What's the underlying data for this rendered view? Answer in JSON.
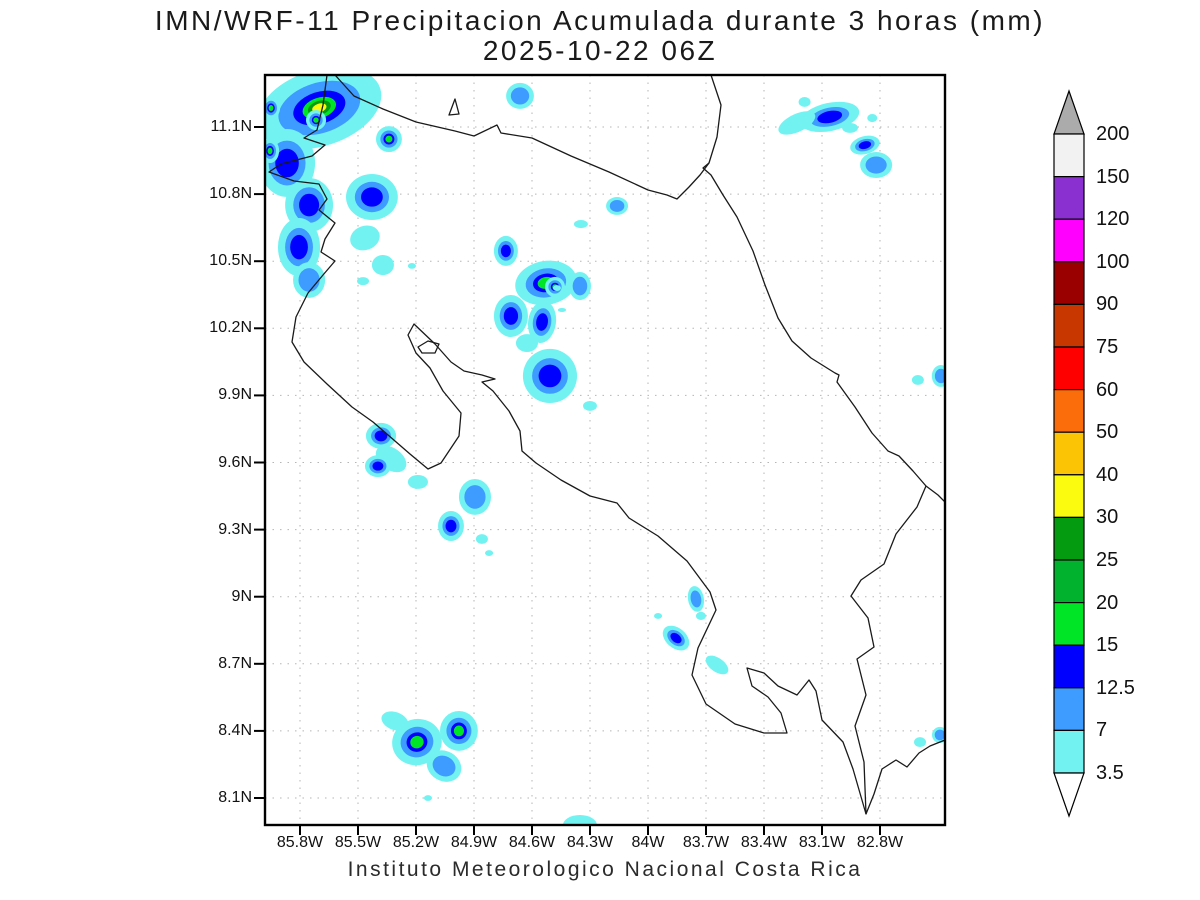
{
  "title": {
    "line1": "IMN/WRF-11 Precipitacion Acumulada durante 3 horas (mm)",
    "line2": "2025-10-22 06Z"
  },
  "footer": "Instituto Meteorologico Nacional Costa Rica",
  "axes": {
    "x_tick_labels": [
      "85.8W",
      "85.5W",
      "85.2W",
      "84.9W",
      "84.6W",
      "84.3W",
      "84W",
      "83.7W",
      "83.4W",
      "83.1W",
      "82.8W"
    ],
    "y_tick_labels": [
      "11.1N",
      "10.8N",
      "10.5N",
      "10.2N",
      "9.9N",
      "9.6N",
      "9.3N",
      "9N",
      "8.7N",
      "8.4N",
      "8.1N"
    ]
  },
  "colorbar": {
    "labels_top_to_bottom": [
      "200",
      "150",
      "120",
      "100",
      "90",
      "75",
      "60",
      "50",
      "40",
      "30",
      "25",
      "20",
      "15",
      "12.5",
      "7",
      "3.5"
    ],
    "segment_colors_top_to_bottom": [
      "#F2F2F2",
      "#8A2FD0",
      "#FF00FF",
      "#9B0000",
      "#C83700",
      "#FF0000",
      "#FB6C0A",
      "#FBC405",
      "#FBFB10",
      "#049B10",
      "#00B22D",
      "#00E626",
      "#0000FF",
      "#3E9BFF",
      "#73F2F2"
    ],
    "arrow_top_color": "#ABABAB",
    "arrow_bottom_color": "#FFFFFF"
  },
  "chart_data": {
    "type": "heatmap",
    "subtype": "precipitation-contour-map",
    "title": "IMN/WRF-11 Precipitacion Acumulada durante 3 horas (mm)",
    "valid_time": "2025-10-22 06Z",
    "units": "mm",
    "region": "Costa Rica",
    "source": "Instituto Meteorologico Nacional Costa Rica",
    "lon_range_deg_w": [
      85.98,
      82.46
    ],
    "lat_range_deg_n": [
      7.98,
      11.33
    ],
    "x_tick_lons_w": [
      85.8,
      85.5,
      85.2,
      84.9,
      84.6,
      84.3,
      84.0,
      83.7,
      83.4,
      83.1,
      82.8
    ],
    "y_tick_lats_n": [
      11.1,
      10.8,
      10.5,
      10.2,
      9.9,
      9.6,
      9.3,
      9.0,
      8.7,
      8.4,
      8.1
    ],
    "grid": true,
    "legend_position": "right",
    "levels_mm": [
      3.5,
      7,
      12.5,
      15,
      20,
      25,
      30,
      40,
      50,
      60,
      75,
      90,
      100,
      120,
      150,
      200
    ],
    "colors_low_to_high": [
      "#73F2F2",
      "#3E9BFF",
      "#0000FF",
      "#00E626",
      "#00B22D",
      "#049B10",
      "#FBFB10",
      "#FBC405",
      "#FB6C0A",
      "#FF0000",
      "#C83700",
      "#9B0000",
      "#FF00FF",
      "#8A2FD0",
      "#F2F2F2"
    ],
    "above_max_color": "#ABABAB",
    "cells_format": [
      "lon_deg_w",
      "lat_deg_n",
      "rx_deg",
      "ry_deg",
      "rotation_deg",
      "peak_mm"
    ],
    "cells_note": "approximate storm-cell footprints read from the plot",
    "cells": [
      [
        85.7,
        11.185,
        0.331,
        0.17,
        -18,
        35
      ],
      [
        85.867,
        10.939,
        0.145,
        0.152,
        0,
        13
      ],
      [
        85.753,
        10.751,
        0.124,
        0.121,
        0,
        13
      ],
      [
        85.805,
        10.563,
        0.109,
        0.13,
        0,
        13
      ],
      [
        85.753,
        10.416,
        0.083,
        0.08,
        0,
        9
      ],
      [
        85.428,
        10.787,
        0.134,
        0.103,
        0,
        13
      ],
      [
        85.34,
        11.046,
        0.067,
        0.058,
        0,
        17
      ],
      [
        85.95,
        11.185,
        0.047,
        0.049,
        0,
        17
      ],
      [
        85.955,
        10.993,
        0.047,
        0.054,
        0,
        17
      ],
      [
        85.717,
        11.131,
        0.052,
        0.045,
        0,
        17
      ],
      [
        85.464,
        10.604,
        0.078,
        0.054,
        -20,
        5
      ],
      [
        85.371,
        10.483,
        0.057,
        0.045,
        0,
        5
      ],
      [
        85.474,
        10.411,
        0.031,
        0.018,
        0,
        5
      ],
      [
        85.221,
        10.479,
        0.021,
        0.013,
        0,
        5
      ],
      [
        84.662,
        11.239,
        0.072,
        0.058,
        0,
        9
      ],
      [
        84.16,
        10.747,
        0.057,
        0.04,
        0,
        9
      ],
      [
        83.06,
        11.145,
        0.155,
        0.063,
        -12,
        13
      ],
      [
        83.23,
        11.118,
        0.103,
        0.04,
        -25,
        5
      ],
      [
        83.19,
        11.212,
        0.031,
        0.022,
        0,
        5
      ],
      [
        82.955,
        11.096,
        0.041,
        0.022,
        0,
        5
      ],
      [
        82.84,
        11.14,
        0.026,
        0.018,
        0,
        5
      ],
      [
        82.878,
        11.019,
        0.078,
        0.04,
        -15,
        13
      ],
      [
        82.82,
        10.93,
        0.083,
        0.058,
        0,
        9
      ],
      [
        84.347,
        10.666,
        0.036,
        0.018,
        0,
        5
      ],
      [
        84.735,
        10.546,
        0.062,
        0.067,
        0,
        13
      ],
      [
        84.528,
        10.403,
        0.16,
        0.098,
        -10,
        17
      ],
      [
        84.481,
        10.385,
        0.052,
        0.045,
        0,
        17
      ],
      [
        84.352,
        10.389,
        0.057,
        0.063,
        0,
        9
      ],
      [
        84.445,
        10.282,
        0.021,
        0.009,
        0,
        5
      ],
      [
        84.471,
        10.38,
        0.021,
        0.013,
        0,
        5
      ],
      [
        84.709,
        10.255,
        0.088,
        0.094,
        0,
        13
      ],
      [
        84.548,
        10.228,
        0.072,
        0.094,
        8,
        13
      ],
      [
        84.507,
        9.987,
        0.14,
        0.121,
        0,
        13
      ],
      [
        84.626,
        10.134,
        0.057,
        0.04,
        0,
        5
      ],
      [
        84.3,
        9.853,
        0.036,
        0.022,
        0,
        5
      ],
      [
        85.381,
        9.719,
        0.078,
        0.058,
        0,
        13
      ],
      [
        85.329,
        9.616,
        0.088,
        0.049,
        35,
        5
      ],
      [
        85.397,
        9.584,
        0.067,
        0.049,
        0,
        13
      ],
      [
        85.19,
        9.513,
        0.052,
        0.031,
        0,
        5
      ],
      [
        84.895,
        9.446,
        0.083,
        0.08,
        0,
        9
      ],
      [
        85.019,
        9.316,
        0.067,
        0.067,
        0,
        13
      ],
      [
        84.859,
        9.258,
        0.031,
        0.022,
        0,
        5
      ],
      [
        84.822,
        9.195,
        0.021,
        0.013,
        0,
        5
      ],
      [
        83.752,
        8.99,
        0.041,
        0.058,
        -10,
        9
      ],
      [
        83.726,
        8.914,
        0.026,
        0.018,
        0,
        5
      ],
      [
        83.855,
        8.815,
        0.078,
        0.045,
        40,
        13
      ],
      [
        83.643,
        8.695,
        0.067,
        0.031,
        35,
        5
      ],
      [
        83.948,
        8.914,
        0.021,
        0.013,
        0,
        5
      ],
      [
        85.309,
        8.444,
        0.072,
        0.04,
        20,
        5
      ],
      [
        85.195,
        8.35,
        0.129,
        0.103,
        -15,
        17
      ],
      [
        84.978,
        8.4,
        0.098,
        0.089,
        0,
        17
      ],
      [
        85.055,
        8.243,
        0.093,
        0.067,
        30,
        9
      ],
      [
        85.138,
        8.1,
        0.021,
        0.013,
        0,
        5
      ],
      [
        84.352,
        7.979,
        0.088,
        0.045,
        0,
        5
      ],
      [
        82.604,
        9.969,
        0.031,
        0.022,
        0,
        5
      ],
      [
        82.485,
        9.987,
        0.047,
        0.049,
        0,
        9
      ],
      [
        82.593,
        8.35,
        0.031,
        0.022,
        0,
        5
      ],
      [
        82.49,
        8.382,
        0.041,
        0.036,
        0,
        9
      ]
    ]
  }
}
